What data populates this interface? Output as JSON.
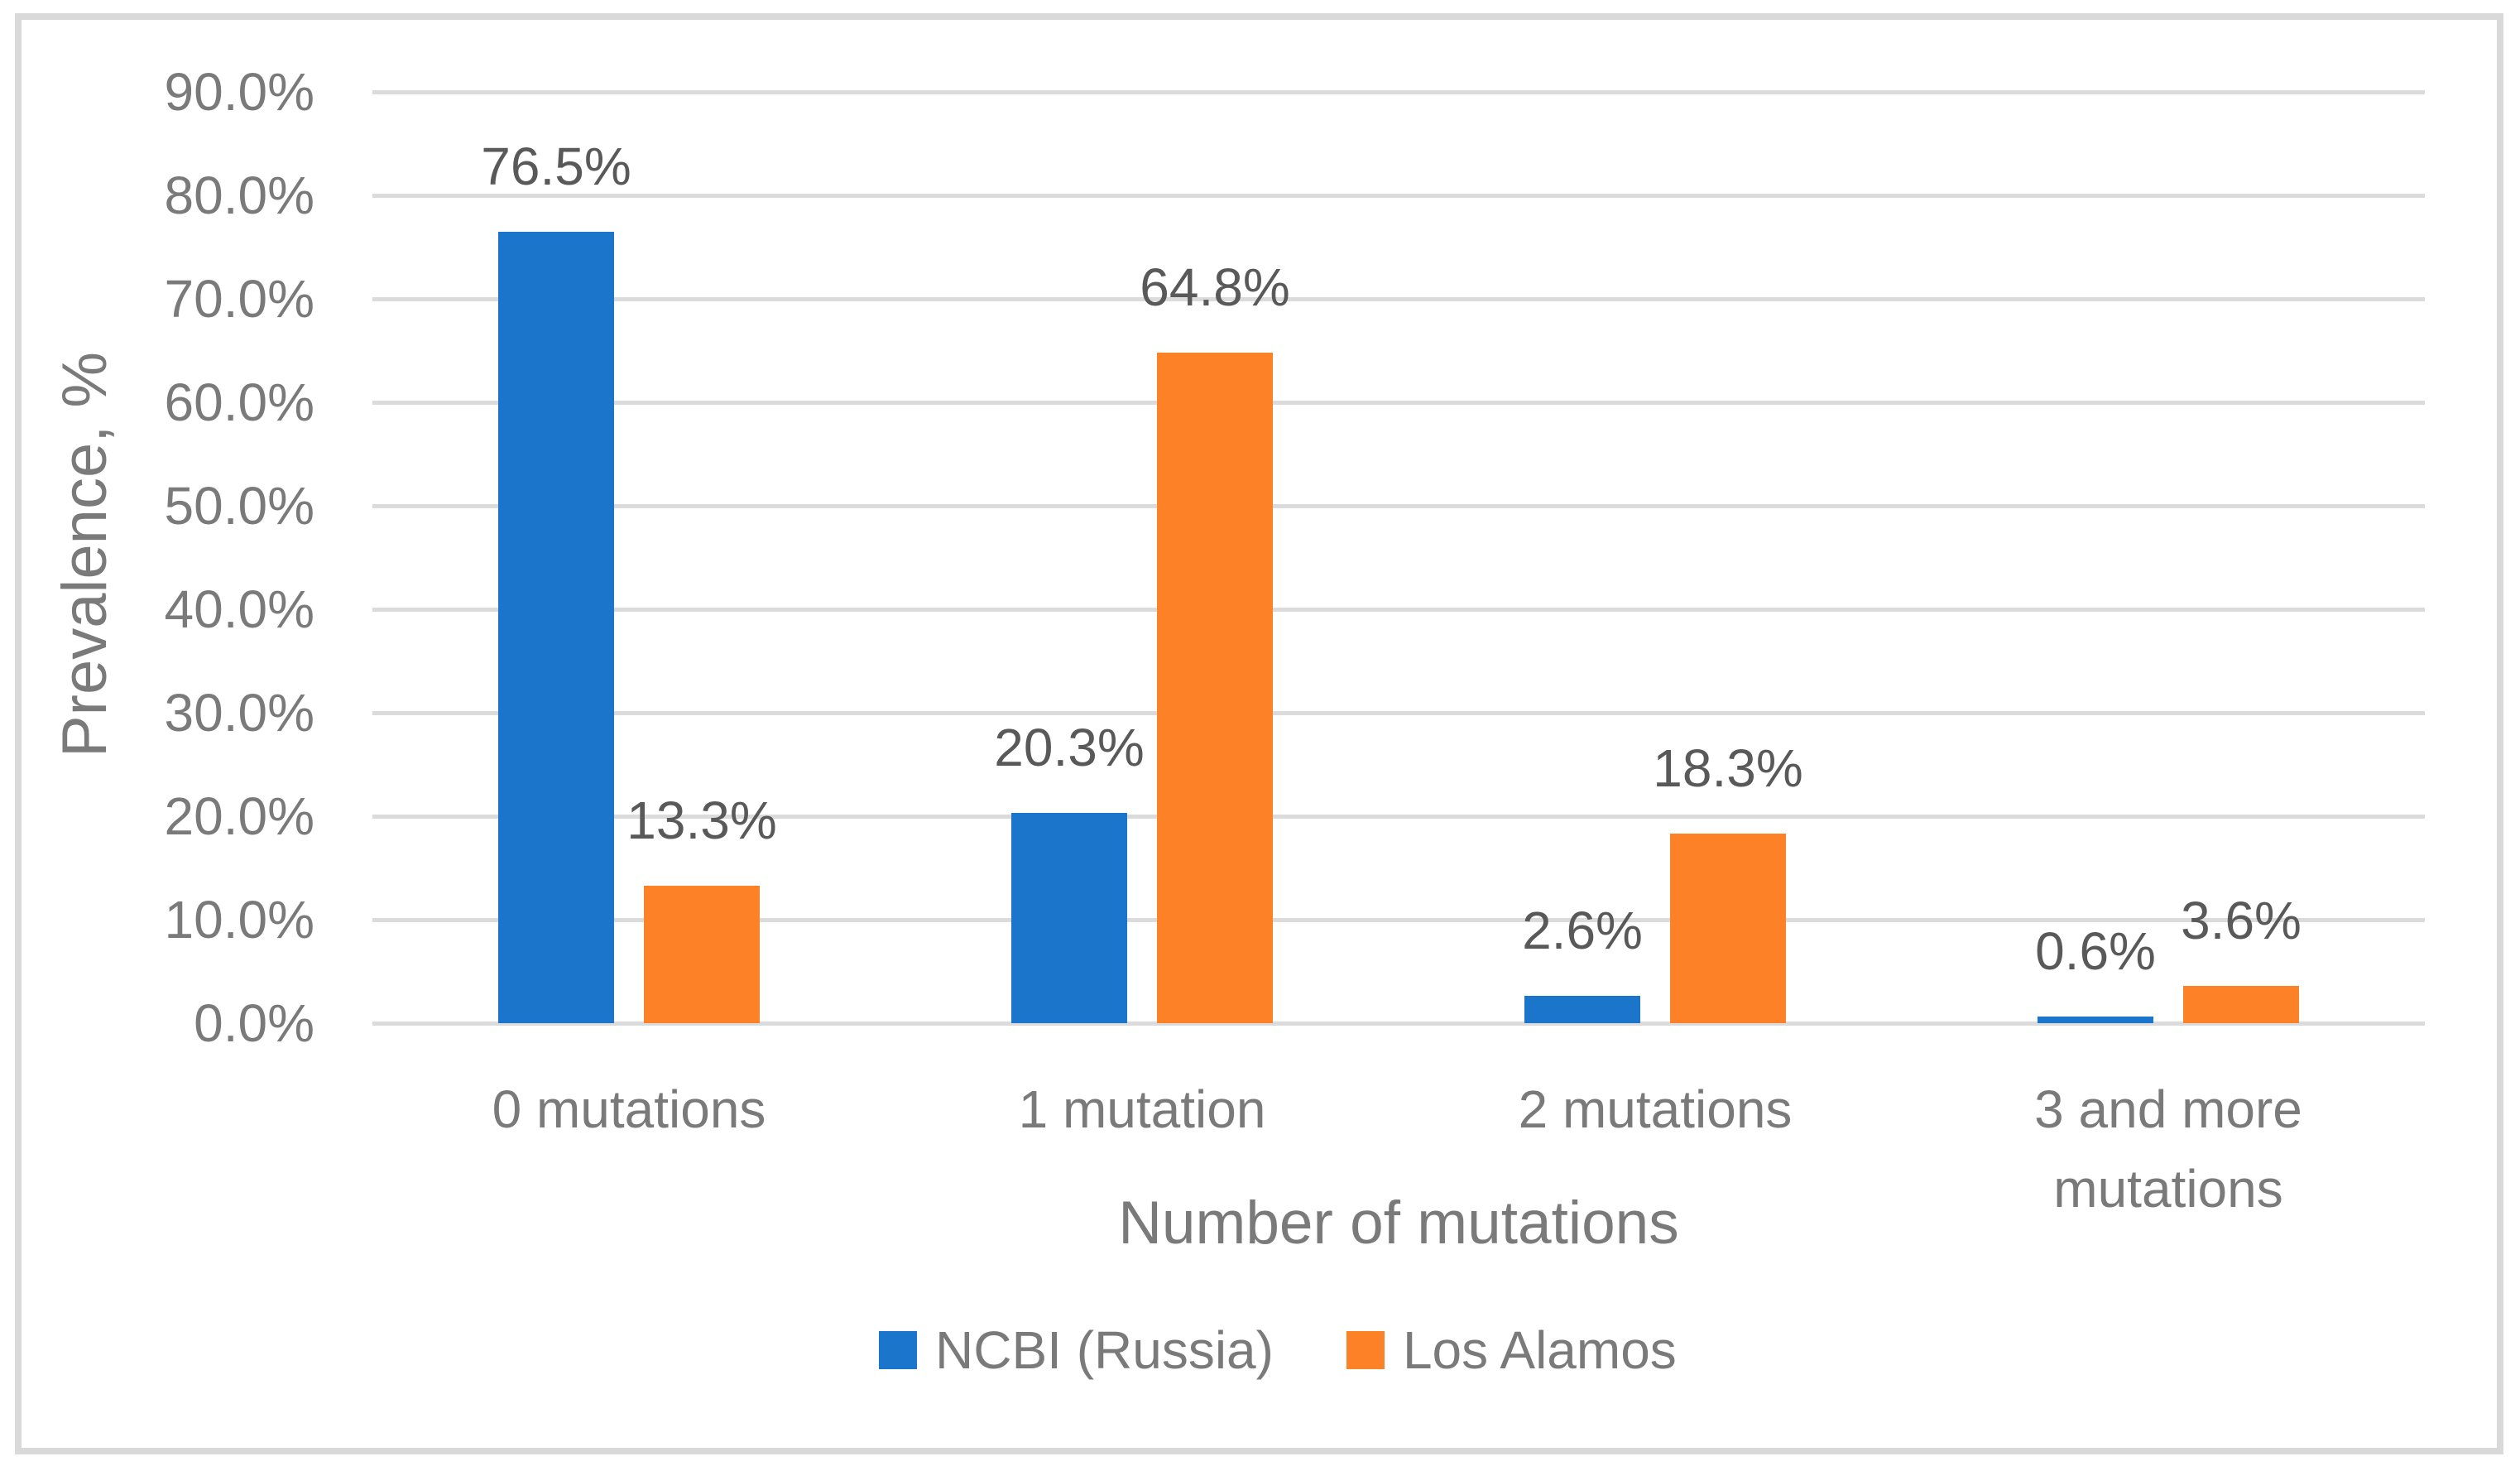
{
  "chart_data": {
    "type": "bar",
    "title": "",
    "xlabel": "Number of mutations",
    "ylabel": "Prevalence, %",
    "categories": [
      "0 mutations",
      "1 mutation",
      "2 mutations",
      "3 and more\nmutations"
    ],
    "series": [
      {
        "name": "NCBI (Russia)",
        "color": "#1A75CB",
        "values": [
          76.5,
          20.3,
          2.6,
          0.6
        ],
        "labels": [
          "76.5%",
          "20.3%",
          "2.6%",
          "0.6%"
        ]
      },
      {
        "name": "Los Alamos",
        "color": "#FD8127",
        "values": [
          13.3,
          64.8,
          18.3,
          3.6
        ],
        "labels": [
          "13.3%",
          "64.8%",
          "18.3%",
          "3.6%"
        ]
      }
    ],
    "ylim": [
      0,
      90
    ],
    "y_ticks": [
      0,
      10,
      20,
      30,
      40,
      50,
      60,
      70,
      80,
      90
    ],
    "y_tick_labels": [
      "0.0%",
      "10.0%",
      "20.0%",
      "30.0%",
      "40.0%",
      "50.0%",
      "60.0%",
      "70.0%",
      "80.0%",
      "90.0%"
    ],
    "grid": "horizontal",
    "legend_position": "bottom"
  },
  "colors": {
    "gridline": "#DBDBDB",
    "figure_border": "#D9D9D9",
    "axis_text": "#7A7A7A",
    "data_label_text": "#595959",
    "background": "#FFFFFF"
  }
}
